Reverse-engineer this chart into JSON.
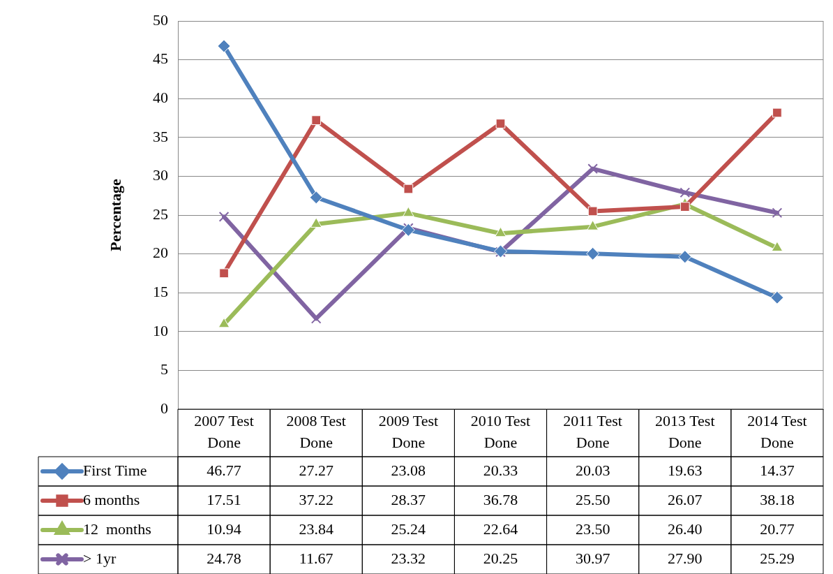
{
  "chart_data": {
    "type": "line",
    "ylabel": "Percentage",
    "categories": [
      "2007 Test Done",
      "2008 Test Done",
      "2009 Test Done",
      "2010 Test Done",
      "2011 Test Done",
      "2013 Test Done",
      "2014 Test Done"
    ],
    "ylim": [
      0,
      50
    ],
    "yticks": [
      0,
      5,
      10,
      15,
      20,
      25,
      30,
      35,
      40,
      45,
      50
    ],
    "grid": "y",
    "legend": "bottom",
    "data_labels": true,
    "series": [
      {
        "name": "First Time",
        "color": "#4f81bd",
        "marker": "diamond",
        "values": [
          46.77,
          27.27,
          23.08,
          20.33,
          20.03,
          19.63,
          14.37
        ],
        "value_labels": [
          "46.77",
          "27.27",
          "23.08",
          "20.33",
          "20.03",
          "19.63",
          "14.37"
        ]
      },
      {
        "name": "6 months",
        "color": "#c0504d",
        "marker": "square",
        "values": [
          17.51,
          37.22,
          28.37,
          36.78,
          25.5,
          26.07,
          38.18
        ],
        "value_labels": [
          "17.51",
          "37.22",
          "28.37",
          "36.78",
          "25.50",
          "26.07",
          "38.18"
        ]
      },
      {
        "name": "12  months",
        "color": "#9bbb59",
        "marker": "triangle",
        "values": [
          10.94,
          23.84,
          25.24,
          22.64,
          23.5,
          26.4,
          20.77
        ],
        "value_labels": [
          "10.94",
          "23.84",
          "25.24",
          "22.64",
          "23.50",
          "26.40",
          "20.77"
        ]
      },
      {
        "name": "> 1yr",
        "color": "#8064a2",
        "marker": "cross",
        "values": [
          24.78,
          11.67,
          23.32,
          20.25,
          30.97,
          27.9,
          25.29
        ],
        "value_labels": [
          "24.78",
          "11.67",
          "23.32",
          "20.25",
          "30.97",
          "27.90",
          "25.29"
        ]
      }
    ]
  }
}
